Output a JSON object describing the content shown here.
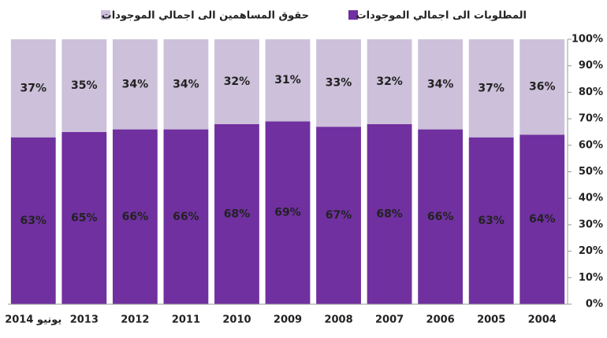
{
  "chart_data": {
    "type": "stacked_bar",
    "categories": [
      "يونيو 2014",
      "2013",
      "2012",
      "2011",
      "2010",
      "2009",
      "2008",
      "2007",
      "2006",
      "2005",
      "2004"
    ],
    "series": [
      {
        "name": "المطلوبات الى اجمالي الموجودات",
        "color": "#7030a0",
        "values": [
          63,
          65,
          66,
          66,
          68,
          69,
          67,
          68,
          66,
          63,
          64
        ],
        "value_labels": [
          "63%",
          "65%",
          "66%",
          "66%",
          "68%",
          "69%",
          "67%",
          "68%",
          "66%",
          "63%",
          "64%"
        ]
      },
      {
        "name": "حقوق المساهمين  الى اجمالي الموجودات",
        "color": "#ccc0da",
        "values": [
          37,
          35,
          34,
          34,
          32,
          31,
          33,
          32,
          34,
          37,
          36
        ],
        "value_labels": [
          "37%",
          "35%",
          "34%",
          "34%",
          "32%",
          "31%",
          "33%",
          "32%",
          "34%",
          "37%",
          "36%"
        ]
      }
    ],
    "ylim": [
      0,
      100
    ],
    "yticks": [
      {
        "value": 0,
        "label": "0%"
      },
      {
        "value": 10,
        "label": "10%"
      },
      {
        "value": 20,
        "label": "20%"
      },
      {
        "value": 30,
        "label": "30%"
      },
      {
        "value": 40,
        "label": "40%"
      },
      {
        "value": 50,
        "label": "50%"
      },
      {
        "value": 60,
        "label": "60%"
      },
      {
        "value": 70,
        "label": "70%"
      },
      {
        "value": 80,
        "label": "80%"
      },
      {
        "value": 90,
        "label": "90%"
      },
      {
        "value": 100,
        "label": "100%"
      }
    ],
    "y_axis_side": "right",
    "legend": "top"
  }
}
